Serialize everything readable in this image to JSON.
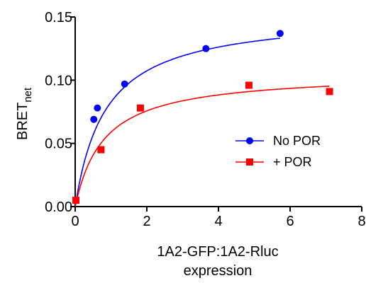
{
  "chart_data": {
    "type": "scatter",
    "xlabel": "1A2-GFP:1A2-Rluc",
    "xlabel_line2": "expression",
    "ylabel": "BRET",
    "ylabel_subscript": "net",
    "xlim": [
      0,
      8
    ],
    "ylim": [
      0,
      0.15
    ],
    "x_ticks": [
      0,
      2,
      4,
      6,
      8
    ],
    "y_ticks": [
      0.0,
      0.05,
      0.1,
      0.15
    ],
    "x_tick_labels": [
      "0",
      "2",
      "4",
      "6",
      "8"
    ],
    "y_tick_labels": [
      "0.00",
      "0.05",
      "0.10",
      "0.15"
    ],
    "grid": false,
    "legend_position": "center-right",
    "series": [
      {
        "name": "No POR",
        "color": "#0000ff",
        "marker": "circle",
        "x": [
          0.02,
          0.52,
          0.62,
          1.38,
          3.65,
          5.72
        ],
        "y": [
          0.005,
          0.069,
          0.078,
          0.097,
          0.125,
          0.137
        ],
        "fit": {
          "model": "hyperbola",
          "bmax": 0.153,
          "kd": 0.85
        }
      },
      {
        "name": "+ POR",
        "color": "#ff0000",
        "marker": "square",
        "x": [
          0.02,
          0.72,
          1.82,
          4.85,
          7.1
        ],
        "y": [
          0.005,
          0.045,
          0.078,
          0.096,
          0.091
        ],
        "fit": {
          "model": "hyperbola",
          "bmax": 0.106,
          "kd": 0.8
        }
      }
    ]
  }
}
